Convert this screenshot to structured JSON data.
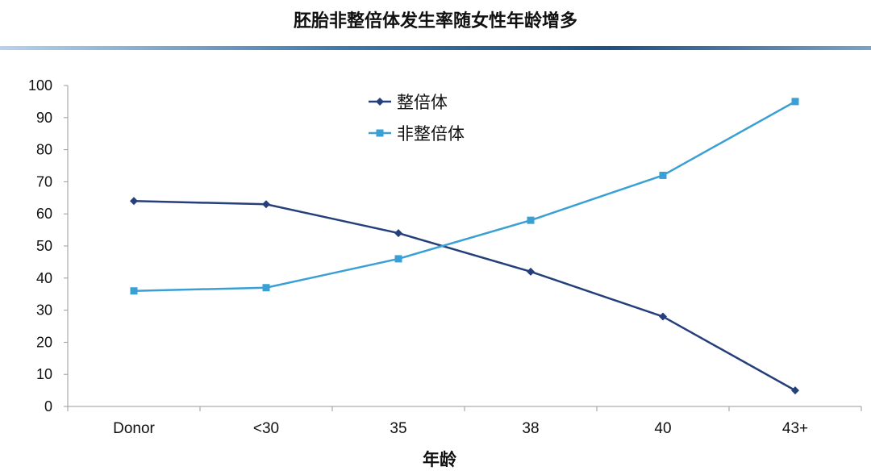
{
  "slide": {
    "title": "胚胎非整倍体发生率随女性年龄增多",
    "accent_color": "#2e6496"
  },
  "chart_data": {
    "type": "line",
    "categories": [
      "Donor",
      "<30",
      "35",
      "38",
      "40",
      "43+"
    ],
    "series": [
      {
        "name": "整倍体",
        "values": [
          64,
          63,
          54,
          42,
          28,
          5
        ],
        "color": "#253f7a",
        "marker": "diamond"
      },
      {
        "name": "非整倍体",
        "values": [
          36,
          37,
          46,
          58,
          72,
          95
        ],
        "color": "#3aa0d4",
        "marker": "square"
      }
    ],
    "title": "",
    "xlabel": "年龄",
    "ylabel": "",
    "ylim": [
      0,
      100
    ],
    "yticks": [
      0,
      10,
      20,
      30,
      40,
      50,
      60,
      70,
      80,
      90,
      100
    ],
    "grid": false,
    "legend_position": "top-center"
  }
}
